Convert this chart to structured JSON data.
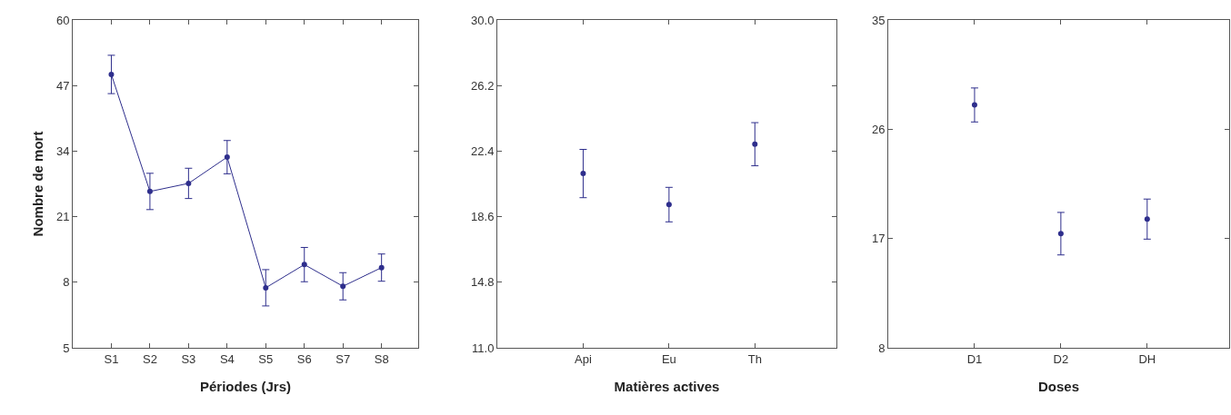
{
  "chart_data": [
    {
      "type": "line",
      "xlabel": "Périodes (Jrs)",
      "ylabel": "Nombre de mort",
      "categories": [
        "S1",
        "S2",
        "S3",
        "S4",
        "S5",
        "S6",
        "S7",
        "S8"
      ],
      "series": [
        {
          "color": "#2e2e8c",
          "values": [
            49.2,
            26.0,
            27.6,
            32.8,
            6.9,
            11.5,
            7.2,
            10.9
          ],
          "errors": [
            3.8,
            3.6,
            3.0,
            3.3,
            3.6,
            3.4,
            2.7,
            2.7
          ]
        }
      ],
      "ylim": [
        -5,
        60
      ],
      "yticks": [
        {
          "value": -5,
          "label": "5"
        },
        8,
        21,
        34,
        47,
        60
      ],
      "marker": "circle",
      "line_style": "solid"
    },
    {
      "type": "scatter",
      "xlabel": "Matières actives",
      "categories": [
        "Api",
        "Eu",
        "Th"
      ],
      "series": [
        {
          "color": "#2e2e8c",
          "values": [
            21.1,
            19.3,
            22.8
          ],
          "errors": [
            1.4,
            1.0,
            1.25
          ]
        }
      ],
      "ylim": [
        11,
        30
      ],
      "yticks": [
        {
          "value": 11,
          "label": "11.0"
        },
        14.8,
        18.6,
        22.4,
        26.2,
        {
          "value": 30,
          "label": "30.0"
        }
      ],
      "marker": "circle"
    },
    {
      "type": "scatter",
      "xlabel": "Doses",
      "categories": [
        "D1",
        "D2",
        "DH"
      ],
      "series": [
        {
          "color": "#2e2e8c",
          "values": [
            28.0,
            17.4,
            18.6
          ],
          "errors": [
            1.4,
            1.75,
            1.65
          ]
        }
      ],
      "ylim": [
        8,
        35
      ],
      "yticks": [
        8,
        17,
        26,
        35
      ],
      "marker": "circle"
    }
  ]
}
